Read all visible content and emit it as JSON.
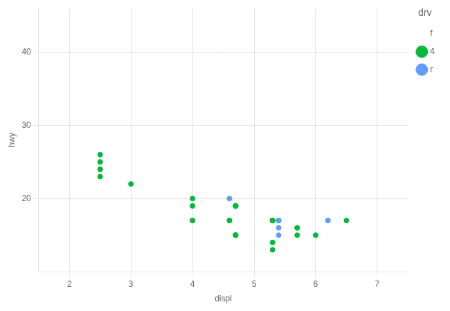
{
  "chart_data": {
    "type": "scatter",
    "xlabel": "displ",
    "ylabel": "hwy",
    "legend_title": "drv",
    "legend": "right",
    "grid": true,
    "xlim": [
      1.5,
      7.5
    ],
    "ylim": [
      10,
      46
    ],
    "xticks": [
      2,
      3,
      4,
      5,
      6,
      7
    ],
    "yticks": [
      20,
      30,
      40
    ],
    "series": [
      {
        "name": "f",
        "marker": "none",
        "x": [],
        "values": []
      },
      {
        "name": "4",
        "color": "#00BA38",
        "marker": "circle",
        "x": [
          2.5,
          2.5,
          2.5,
          2.5,
          2.5,
          2.5,
          2.5,
          3.0,
          4.0,
          4.0,
          4.0,
          4.0,
          4.6,
          4.6,
          4.7,
          4.7,
          4.7,
          4.7,
          4.7,
          4.7,
          4.7,
          4.7,
          4.7,
          5.3,
          5.3,
          5.3,
          5.3,
          5.3,
          5.3,
          5.3,
          5.3,
          5.7,
          5.7,
          6.0,
          6.5
        ],
        "values": [
          26,
          25,
          25,
          24,
          24,
          24,
          23,
          22,
          20,
          19,
          17,
          17,
          17,
          17,
          19,
          19,
          19,
          19,
          19,
          15,
          15,
          15,
          15,
          17,
          17,
          17,
          17,
          17,
          17,
          14,
          13,
          16,
          15,
          15,
          17
        ]
      },
      {
        "name": "r",
        "color": "#619CFF",
        "marker": "circle",
        "x": [
          4.6,
          5.4,
          5.4,
          5.4,
          5.4,
          5.4,
          5.4,
          5.7,
          6.2,
          6.2
        ],
        "values": [
          20,
          17,
          17,
          17,
          17,
          16,
          15,
          16,
          17,
          17
        ]
      }
    ]
  }
}
